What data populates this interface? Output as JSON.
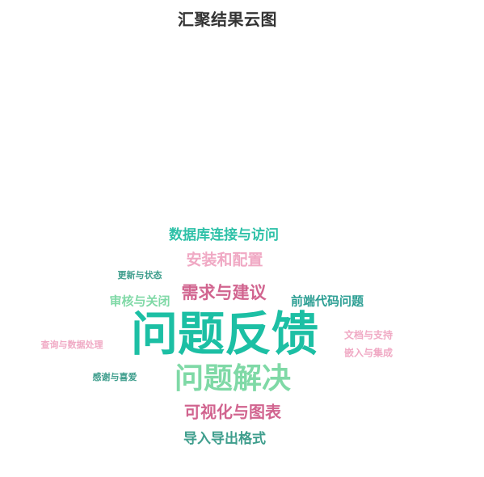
{
  "chart_data": {
    "type": "wordcloud",
    "title": "汇聚结果云图",
    "words": [
      {
        "text": "问题反馈",
        "color": "#1cbfa4"
      },
      {
        "text": "问题解决",
        "color": "#7fd9a6"
      },
      {
        "text": "需求与建议",
        "color": "#d1648f"
      },
      {
        "text": "数据库连接与访问",
        "color": "#2fc1a8"
      },
      {
        "text": "安装和配置",
        "color": "#f0a9c4"
      },
      {
        "text": "可视化与图表",
        "color": "#d1648f"
      },
      {
        "text": "导入导出格式",
        "color": "#3f9e8d"
      },
      {
        "text": "前端代码问题",
        "color": "#2b9e93"
      },
      {
        "text": "审核与关闭",
        "color": "#7fd9a6"
      },
      {
        "text": "文档与支持",
        "color": "#f0a9c4"
      },
      {
        "text": "嵌入与集成",
        "color": "#f0a9c4"
      },
      {
        "text": "更新与状态",
        "color": "#3f9e8d"
      },
      {
        "text": "查询与数据处理",
        "color": "#f0a9c4"
      },
      {
        "text": "感谢与喜爱",
        "color": "#3f9e8d"
      }
    ]
  }
}
